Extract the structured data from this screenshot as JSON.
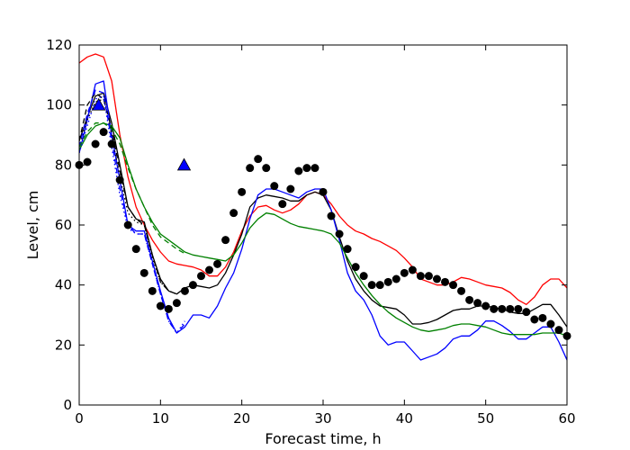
{
  "chart_data": {
    "type": "line",
    "title": "",
    "xlabel": "Forecast time, h",
    "ylabel": "Level, cm",
    "xlim": [
      0,
      60
    ],
    "ylim": [
      0,
      120
    ],
    "xticks": [
      0,
      10,
      20,
      30,
      40,
      50,
      60
    ],
    "yticks": [
      0,
      20,
      40,
      60,
      80,
      100,
      120
    ],
    "grid": false,
    "series": [
      {
        "style": "line",
        "color": "#ff0000",
        "dash": "solid",
        "x": [
          0,
          1,
          2,
          3,
          4,
          5,
          6,
          7,
          8,
          9,
          10,
          11,
          12,
          13,
          14,
          15,
          16,
          17,
          18,
          19,
          20,
          21,
          22,
          23,
          24,
          25,
          26,
          27,
          28,
          29,
          30,
          31,
          32,
          33,
          34,
          35,
          36,
          37,
          38,
          39,
          40,
          41,
          42,
          43,
          44,
          45,
          46,
          47,
          48,
          49,
          50,
          51,
          52,
          53,
          54,
          55,
          56,
          57,
          58,
          59,
          60
        ],
        "y": [
          114,
          116,
          117,
          116,
          108,
          90,
          76,
          66,
          60,
          55,
          51,
          48,
          47,
          46.5,
          46,
          45,
          43,
          43,
          46,
          51,
          58,
          63,
          66,
          66.5,
          65,
          64,
          65,
          67,
          70,
          71,
          70,
          67,
          63,
          60,
          58,
          57,
          55.5,
          54.5,
          53,
          51.5,
          49,
          46,
          42,
          41,
          40,
          40,
          41,
          42.5,
          42,
          41,
          40,
          39.5,
          39,
          37.5,
          35,
          33.5,
          36,
          40,
          42,
          42,
          39
        ]
      },
      {
        "style": "line",
        "color": "#000000",
        "dash": "solid",
        "x": [
          0,
          1,
          2,
          3,
          4,
          5,
          6,
          7,
          8,
          9,
          10,
          11,
          12,
          13,
          14,
          15,
          16,
          17,
          18,
          19,
          20,
          21,
          22,
          23,
          24,
          25,
          26,
          27,
          28,
          29,
          30,
          31,
          32,
          33,
          34,
          35,
          36,
          37,
          38,
          39,
          40,
          41,
          42,
          43,
          44,
          45,
          46,
          47,
          48,
          49,
          50,
          51,
          52,
          53,
          54,
          55,
          56,
          57,
          58,
          59,
          60
        ],
        "y": [
          88,
          96,
          103,
          104,
          94,
          80,
          66,
          62,
          61,
          50,
          42,
          38,
          37,
          39,
          40,
          39.5,
          39,
          40,
          44,
          50,
          57,
          66,
          69,
          70,
          69.5,
          69,
          68,
          68,
          70,
          71,
          70,
          65,
          56,
          48,
          42,
          38,
          35,
          33,
          32.5,
          32,
          30,
          27,
          27,
          27.5,
          28.5,
          30,
          31.5,
          32,
          32,
          33,
          33,
          32.5,
          32,
          31,
          30.5,
          30.5,
          32,
          33.5,
          33.5,
          30,
          26
        ]
      },
      {
        "style": "line",
        "color": "#0000ff",
        "dash": "solid",
        "x": [
          0,
          1,
          2,
          3,
          4,
          5,
          6,
          7,
          8,
          9,
          10,
          11,
          12,
          13,
          14,
          15,
          16,
          17,
          18,
          19,
          20,
          21,
          22,
          23,
          24,
          25,
          26,
          27,
          28,
          29,
          30,
          31,
          32,
          33,
          34,
          35,
          36,
          37,
          38,
          39,
          40,
          41,
          42,
          43,
          44,
          45,
          46,
          47,
          48,
          49,
          50,
          51,
          52,
          53,
          54,
          55,
          56,
          57,
          58,
          59,
          60
        ],
        "y": [
          84,
          95,
          107,
          108,
          90,
          75,
          60,
          58,
          58,
          48,
          38,
          29,
          24,
          26,
          30,
          30,
          29,
          33,
          39,
          44,
          52,
          62,
          70,
          72,
          72,
          71,
          70,
          69,
          71,
          72,
          72,
          65,
          55,
          44,
          38,
          35,
          30,
          23,
          20,
          21,
          21,
          18,
          15,
          16,
          17,
          19,
          22,
          23,
          23,
          25,
          28,
          28,
          26.5,
          24.5,
          22,
          22,
          24,
          26,
          26,
          21,
          15
        ]
      },
      {
        "style": "line",
        "color": "#008000",
        "dash": "solid",
        "x": [
          0,
          1,
          2,
          3,
          4,
          5,
          6,
          7,
          8,
          9,
          10,
          11,
          12,
          13,
          14,
          15,
          16,
          17,
          18,
          19,
          20,
          21,
          22,
          23,
          24,
          25,
          26,
          27,
          28,
          29,
          30,
          31,
          32,
          33,
          34,
          35,
          36,
          37,
          38,
          39,
          40,
          41,
          42,
          43,
          44,
          45,
          46,
          47,
          48,
          49,
          50,
          51,
          52,
          53,
          54,
          55,
          56,
          57,
          58,
          59,
          60
        ],
        "y": [
          85,
          90,
          93,
          94,
          93,
          89,
          80,
          72,
          66,
          61,
          57,
          55,
          53,
          51,
          50,
          49.5,
          49,
          48.5,
          48,
          50,
          54,
          59,
          62,
          64,
          63.5,
          62,
          60.5,
          59.5,
          59,
          58.5,
          58,
          57,
          54,
          49,
          44,
          40,
          36.5,
          33.5,
          31,
          29,
          27.5,
          26,
          25,
          24.5,
          25,
          25.5,
          26.5,
          27,
          27,
          26.5,
          26,
          25,
          24,
          23.5,
          23.5,
          23.5,
          23.5,
          24,
          24,
          24,
          23
        ]
      },
      {
        "style": "line",
        "color": "#000000",
        "dash": "dashed",
        "x": [
          0,
          1,
          2,
          3,
          4,
          5,
          6,
          7,
          8,
          9,
          10,
          11,
          12
        ],
        "y": [
          88,
          100,
          104,
          102,
          92,
          78,
          66,
          62,
          60,
          50,
          41,
          38,
          37
        ]
      },
      {
        "style": "line",
        "color": "#000000",
        "dash": "dotted",
        "x": [
          0,
          1,
          2,
          3,
          4,
          5,
          6,
          7,
          8,
          9,
          10,
          11,
          12
        ],
        "y": [
          86,
          95,
          101,
          102,
          90,
          76,
          64,
          61,
          60,
          49,
          41,
          38,
          37
        ]
      },
      {
        "style": "line",
        "color": "#0000ff",
        "dash": "dashed",
        "x": [
          0,
          1,
          2,
          3,
          4,
          5,
          6,
          7,
          8,
          9,
          10,
          11,
          12,
          13
        ],
        "y": [
          86,
          97,
          105,
          104,
          88,
          72,
          60,
          57,
          57,
          47,
          37,
          28,
          24,
          27
        ]
      },
      {
        "style": "line",
        "color": "#0000ff",
        "dash": "dotted",
        "x": [
          0,
          1,
          2,
          3,
          4,
          5,
          6,
          7,
          8,
          9,
          10,
          11,
          12,
          13
        ],
        "y": [
          84,
          93,
          102,
          103,
          86,
          70,
          59,
          57,
          57,
          47,
          37,
          28,
          24,
          28
        ]
      },
      {
        "style": "line",
        "color": "#008000",
        "dash": "dashed",
        "x": [
          0,
          1,
          2,
          3,
          4,
          5,
          6,
          7,
          8,
          9,
          10,
          11,
          12,
          13
        ],
        "y": [
          86,
          91,
          94,
          94,
          92,
          87,
          79,
          72,
          66,
          60,
          56,
          54,
          52,
          50.5
        ]
      },
      {
        "style": "markers",
        "marker": "circle",
        "color": "#000000",
        "x": [
          0,
          1,
          2,
          3,
          4,
          5,
          6,
          7,
          8,
          9,
          10,
          11,
          12,
          13,
          14,
          15,
          16,
          17,
          18,
          19,
          20,
          21,
          22,
          23,
          24,
          25,
          26,
          27,
          28,
          29,
          30,
          31,
          32,
          33,
          34,
          35,
          36,
          37,
          38,
          39,
          40,
          41,
          42,
          43,
          44,
          45,
          46,
          47,
          48,
          49,
          50,
          51,
          52,
          53,
          54,
          55,
          56,
          57,
          58,
          59,
          60
        ],
        "y": [
          80,
          81,
          87,
          91,
          87,
          75,
          60,
          52,
          44,
          38,
          33,
          32,
          34,
          38,
          40,
          43,
          45,
          47,
          55,
          64,
          71,
          79,
          82,
          79,
          73,
          67,
          72,
          78,
          79,
          79,
          71,
          63,
          57,
          52,
          46,
          43,
          40,
          40,
          41,
          42,
          44,
          45,
          43,
          43,
          42,
          41,
          40,
          38,
          35,
          34,
          33,
          32,
          32,
          32,
          32,
          31,
          28.5,
          29,
          27,
          25,
          23
        ]
      },
      {
        "style": "markers",
        "marker": "triangle",
        "color": "#0000ff",
        "x": [
          2.4,
          12.9
        ],
        "y": [
          100,
          80
        ]
      }
    ]
  }
}
